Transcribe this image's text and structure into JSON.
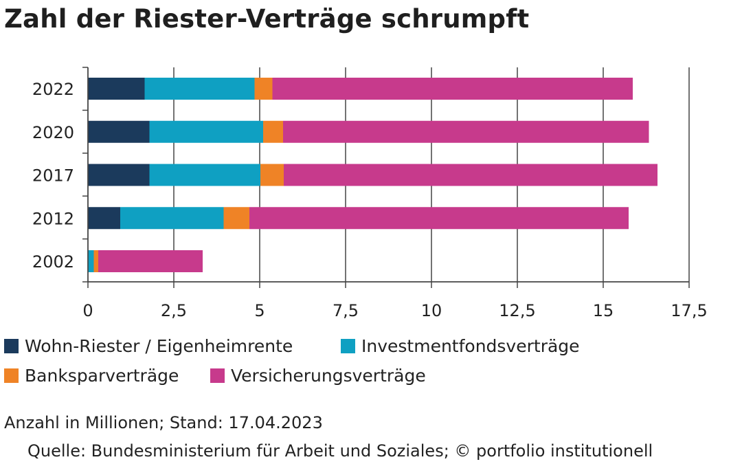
{
  "title": "Zahl der Riester-Verträge schrumpft",
  "note": "Anzahl in Millionen; Stand: 17.04.2023",
  "source": "Quelle: Bundesministerium für Arbeit und Soziales; © portfolio institutionell",
  "colors": {
    "wohn": "#1b3a5c",
    "invest": "#0fa0c2",
    "bank": "#ef8326",
    "vers": "#c73a8c",
    "grid": "#444444",
    "text": "#222222"
  },
  "legend": {
    "rows": [
      [
        {
          "label": "Wohn-Riester / Eigenheimrente",
          "color": "#1b3a5c"
        },
        {
          "label": "Investmentfondsverträge",
          "color": "#0fa0c2"
        }
      ],
      [
        {
          "label": "Banksparverträge",
          "color": "#ef8326"
        },
        {
          "label": "Versicherungsverträge",
          "color": "#c73a8c"
        }
      ]
    ]
  },
  "chart_data": {
    "type": "bar",
    "orientation": "horizontal",
    "stacked": true,
    "title": "Zahl der Riester-Verträge schrumpft",
    "xlabel": "Anzahl in Millionen",
    "ylabel": "",
    "xlim": [
      0,
      17.5
    ],
    "xticks": [
      "0",
      "2,5",
      "5",
      "7,5",
      "10",
      "12,5",
      "15",
      "17,5"
    ],
    "xtick_values": [
      0,
      2.5,
      5,
      7.5,
      10,
      12.5,
      15,
      17.5
    ],
    "grid": "vertical",
    "categories": [
      "2022",
      "2020",
      "2017",
      "2012",
      "2002"
    ],
    "series": [
      {
        "name": "Wohn-Riester / Eigenheimrente",
        "color": "#1b3a5c",
        "values": [
          1.65,
          1.79,
          1.79,
          0.94,
          0
        ]
      },
      {
        "name": "Investmentfondsverträge",
        "color": "#0fa0c2",
        "values": [
          3.2,
          3.31,
          3.23,
          3.01,
          0.17
        ]
      },
      {
        "name": "Banksparverträge",
        "color": "#ef8326",
        "values": [
          0.52,
          0.58,
          0.68,
          0.75,
          0.13
        ]
      },
      {
        "name": "Versicherungsverträge",
        "color": "#c73a8c",
        "values": [
          10.49,
          10.65,
          10.88,
          11.04,
          3.04
        ]
      }
    ]
  }
}
